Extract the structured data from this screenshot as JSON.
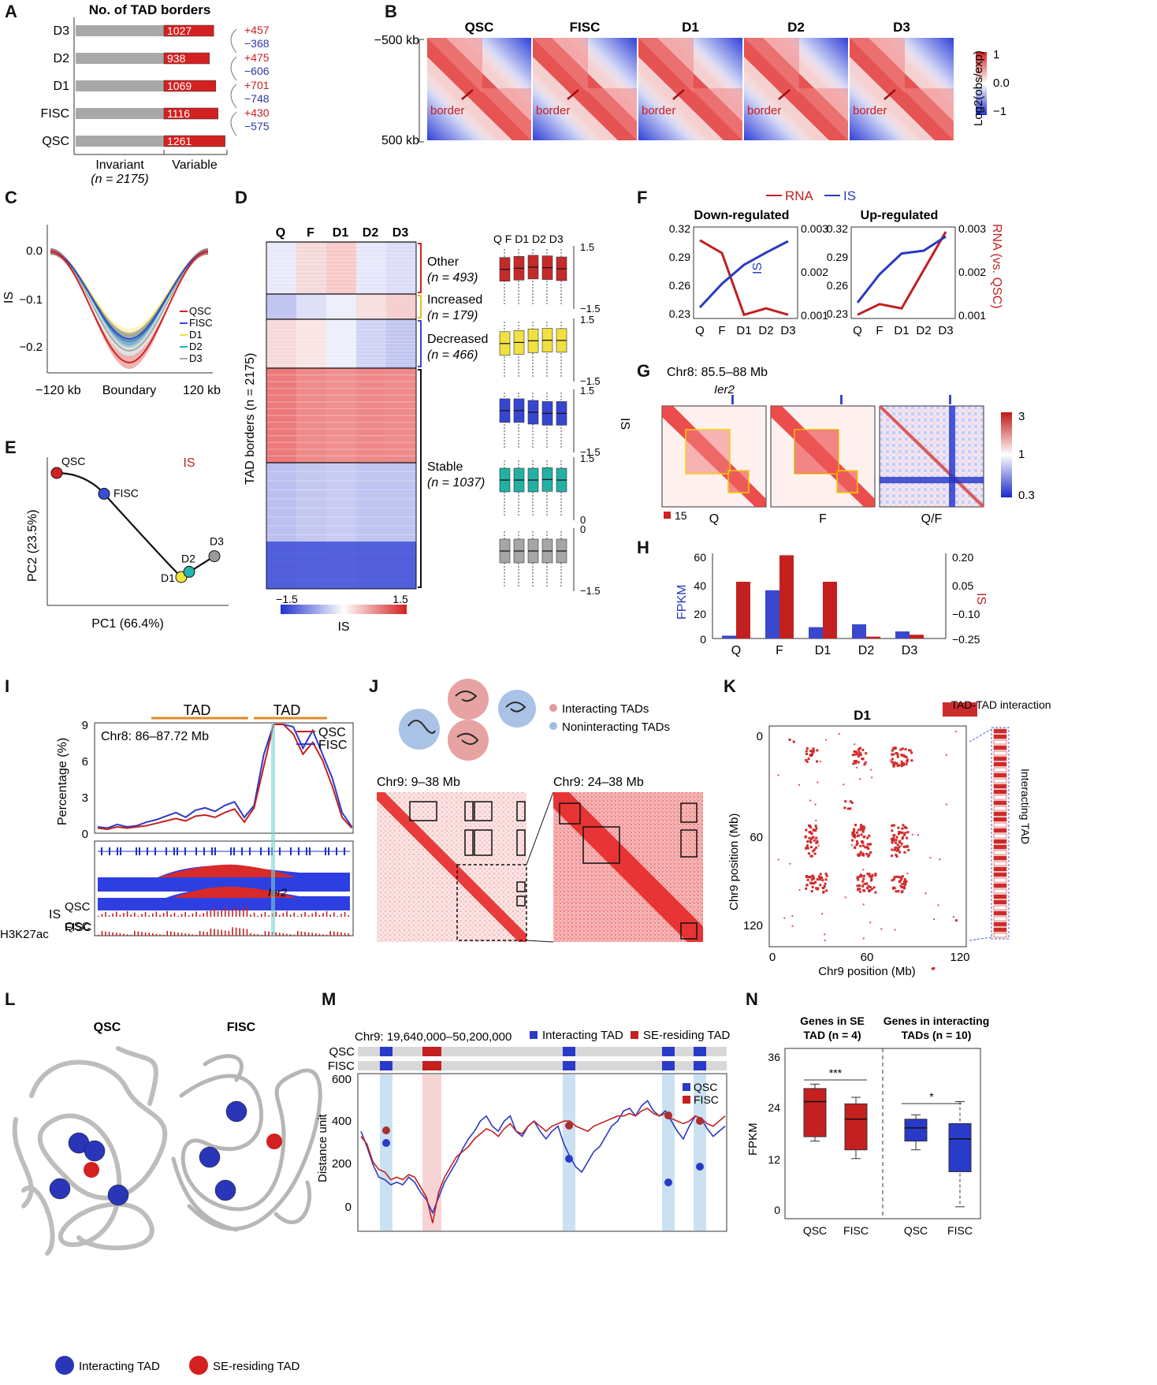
{
  "panels": {
    "A": {
      "letter": "A",
      "title": "No. of TAD borders",
      "rows": [
        {
          "label": "D3",
          "variable": "1027"
        },
        {
          "label": "D2",
          "variable": "938"
        },
        {
          "label": "D1",
          "variable": "1069"
        },
        {
          "label": "FISC",
          "variable": "1116"
        },
        {
          "label": "QSC",
          "variable": "1261"
        }
      ],
      "changes": [
        {
          "gain": "+457",
          "loss": "−368"
        },
        {
          "gain": "+475",
          "loss": "−606"
        },
        {
          "gain": "+701",
          "loss": "−748"
        },
        {
          "gain": "+430",
          "loss": "−575"
        }
      ],
      "xlabel_left": "Invariant",
      "xlabel_left_n": "(n = 2175)",
      "xlabel_right": "Variable"
    },
    "B": {
      "letter": "B",
      "conditions": [
        "QSC",
        "FISC",
        "D1",
        "D2",
        "D3"
      ],
      "border_label": "border",
      "y_top": "−500 kb",
      "y_bottom": "500 kb",
      "colorbar_label": "Log2(obs/exp)",
      "colorbar_ticks": [
        "1",
        "0.0",
        "−1"
      ]
    },
    "C": {
      "letter": "C",
      "ylabel": "IS",
      "yticks": [
        "0.0",
        "−0.1",
        "−0.2"
      ],
      "xticks": [
        "−120 kb",
        "Boundary",
        "120 kb"
      ],
      "legend": [
        "QSC",
        "FISC",
        "D1",
        "D2",
        "D3"
      ]
    },
    "D": {
      "letter": "D",
      "columns": [
        "Q",
        "F",
        "D1",
        "D2",
        "D3"
      ],
      "ylabel": "TAD borders (n = 2175)",
      "groups": [
        {
          "name": "Other",
          "n": "(n = 493)"
        },
        {
          "name": "Increased",
          "n": "(n = 179)"
        },
        {
          "name": "Decreased",
          "n": "(n = 466)"
        },
        {
          "name": "Stable",
          "n": "(n = 1037)"
        }
      ],
      "box_columns": "Q F D1 D2 D3",
      "box_axis_label": "IS",
      "cb_min": "−1.5",
      "cb_max": "1.5",
      "cb_label": "IS"
    },
    "E": {
      "letter": "E",
      "title": "IS",
      "xlabel": "PC1 (66.4%)",
      "ylabel": "PC2 (23.5%)",
      "points": [
        {
          "label": "QSC",
          "pc1": 0.0,
          "pc2": 1.0,
          "color": "#d42020"
        },
        {
          "label": "FISC",
          "pc1": 0.3,
          "pc2": 0.8,
          "color": "#3b4fd6"
        },
        {
          "label": "D1",
          "pc1": 0.79,
          "pc2": 0.0,
          "color": "#f3e63a"
        },
        {
          "label": "D2",
          "pc1": 0.84,
          "pc2": 0.05,
          "color": "#25b5ac"
        },
        {
          "label": "D3",
          "pc1": 1.0,
          "pc2": 0.2,
          "color": "#9a9a9a"
        }
      ]
    },
    "F": {
      "letter": "F",
      "legend": [
        "RNA",
        "IS"
      ],
      "titles": [
        "Down-regulated",
        "Up-regulated"
      ],
      "yleft_ticks": [
        "0.32",
        "0.29",
        "0.26",
        "0.23"
      ],
      "yright_ticks": [
        "0.003",
        "0.002",
        "0.001"
      ],
      "xticks": [
        "Q",
        "F",
        "D1",
        "D2",
        "D3"
      ],
      "ylabel_left": "IS",
      "ylabel_right": "RNA (vs. QSC)"
    },
    "G": {
      "letter": "G",
      "region": "Chr8: 85.5–88 Mb",
      "gene": "Ier2",
      "maps": [
        "Q",
        "F",
        "Q/F"
      ],
      "scale_label": "15",
      "cb_ticks": [
        "3",
        "1",
        "0.3"
      ]
    },
    "H": {
      "letter": "H",
      "ylabel_left": "FPKM",
      "ylabel_right": "IS",
      "yleft_ticks": [
        "60",
        "40",
        "20",
        "0"
      ],
      "yright_ticks": [
        "0.20",
        "0.05",
        "−0.10",
        "−0.25"
      ],
      "categories": [
        "Q",
        "F",
        "D1",
        "D2",
        "D3"
      ]
    },
    "I": {
      "letter": "I",
      "tad_label": "TAD",
      "region": "Chr8: 86–87.72 Mb",
      "legend": [
        "QSC",
        "FISC"
      ],
      "ylabel": "Percentage (%)",
      "yticks": [
        "9",
        "6",
        "3",
        "0"
      ],
      "gene": "Ier2",
      "track_is": "IS",
      "track_h3": "H3K27ac",
      "track_samples": [
        "QSC",
        "FISC"
      ]
    },
    "J": {
      "letter": "J",
      "legend": [
        "Interacting TADs",
        "Noninteracting TADs"
      ],
      "region1": "Chr9: 9–38 Mb",
      "region2": "Chr9: 24–38 Mb"
    },
    "K": {
      "letter": "K",
      "title": "D1",
      "legend": "TAD-TAD interaction",
      "yticks": [
        "0",
        "60",
        "120"
      ],
      "xticks": [
        "0",
        "60",
        "120"
      ],
      "ylabel": "Chr9 position (Mb)",
      "xlabel": "Chr9 position (Mb)",
      "side_label": "Interacting TAD"
    },
    "L": {
      "letter": "L",
      "titles": [
        "QSC",
        "FISC"
      ],
      "legend": [
        "Interacting TAD",
        "SE-residing TAD"
      ]
    },
    "M": {
      "letter": "M",
      "region": "Chr9: 19,640,000–50,200,000",
      "legend_top": [
        "Interacting TAD",
        "SE-residing TAD"
      ],
      "tracks": [
        "QSC",
        "FISC"
      ],
      "ylabel": "Distance unit",
      "yticks": [
        "600",
        "400",
        "200",
        "0"
      ],
      "legend": [
        "QSC",
        "FISC"
      ]
    },
    "N": {
      "letter": "N",
      "title1": "Genes in SE",
      "title1b": "TAD (n = 4)",
      "title2": "Genes in interacting",
      "title2b": "TADs (n = 10)",
      "ylabel": "FPKM",
      "yticks": [
        "36",
        "24",
        "12",
        "0"
      ],
      "xticks": [
        "QSC",
        "FISC",
        "QSC",
        "FISC"
      ],
      "sig1": "***",
      "sig2": "*"
    }
  },
  "chart_data": [
    {
      "type": "bar",
      "title": "No. of TAD borders",
      "categories": [
        "D3",
        "D2",
        "D1",
        "FISC",
        "QSC"
      ],
      "series": [
        {
          "name": "Invariant",
          "values": [
            2175,
            2175,
            2175,
            2175,
            2175
          ]
        },
        {
          "name": "Variable",
          "values": [
            1027,
            938,
            1069,
            1116,
            1261
          ]
        }
      ]
    },
    {
      "type": "line",
      "title": "Down-regulated",
      "categories": [
        "Q",
        "F",
        "D1",
        "D2",
        "D3"
      ],
      "series": [
        {
          "name": "RNA",
          "values": [
            0.0028,
            0.0025,
            0.00105,
            0.0012,
            0.00105
          ]
        },
        {
          "name": "IS",
          "values": [
            0.24,
            0.265,
            0.285,
            0.298,
            0.31
          ]
        }
      ]
    },
    {
      "type": "line",
      "title": "Up-regulated",
      "categories": [
        "Q",
        "F",
        "D1",
        "D2",
        "D3"
      ],
      "series": [
        {
          "name": "RNA",
          "values": [
            0.00105,
            0.0013,
            0.0012,
            0.0021,
            0.003
          ]
        },
        {
          "name": "IS",
          "values": [
            0.245,
            0.275,
            0.297,
            0.3,
            0.315
          ]
        }
      ]
    },
    {
      "type": "bar",
      "categories": [
        "Q",
        "F",
        "D1",
        "D2",
        "D3"
      ],
      "series": [
        {
          "name": "FPKM",
          "values": [
            2,
            34,
            8,
            10,
            5
          ]
        },
        {
          "name": "IS",
          "values": [
            0.05,
            0.19,
            0.05,
            -0.24,
            -0.23
          ]
        }
      ]
    }
  ],
  "colors": {
    "red": "#d32121",
    "blue": "#3a48cf",
    "gray": "#a8a8a8",
    "yellow": "#f2e23b",
    "teal": "#21b3a6"
  }
}
